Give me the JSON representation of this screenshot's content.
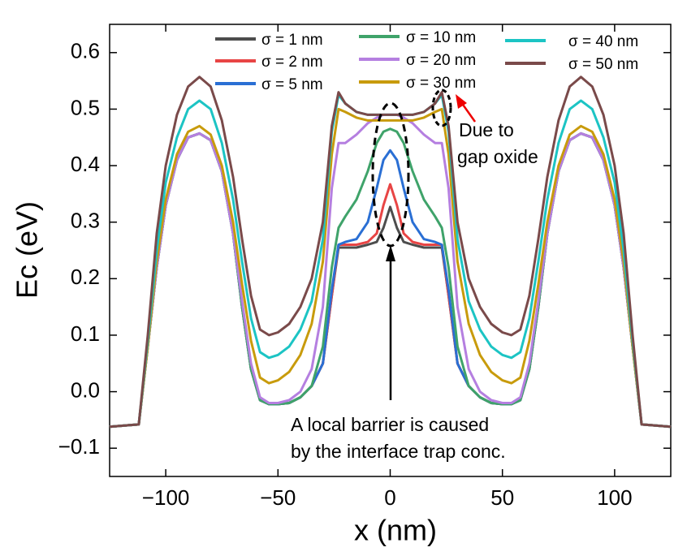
{
  "chart_data": {
    "type": "line",
    "xlabel": "x (nm)",
    "ylabel": "Ec (eV)",
    "xlim": [
      -125,
      125
    ],
    "ylim": [
      -0.15,
      0.65
    ],
    "xticks": [
      {
        "value": -100,
        "label": "−100"
      },
      {
        "value": -50,
        "label": "−50"
      },
      0,
      50,
      100
    ],
    "yticks": [
      {
        "value": -0.1,
        "label": "−0.1"
      },
      {
        "value": 0,
        "label": "0.0"
      },
      0.1,
      0.2,
      0.3,
      0.4,
      0.5,
      0.6
    ],
    "x": [
      -125,
      -112,
      -108,
      -104,
      -100,
      -95,
      -90,
      -85,
      -80,
      -75,
      -70,
      -66,
      -62,
      -58,
      -54,
      -50,
      -45,
      -40,
      -35,
      -30,
      -26,
      -23,
      -20,
      -15,
      -10,
      -6,
      -3,
      0,
      3,
      6,
      10,
      15,
      20,
      23,
      26,
      30,
      35,
      40,
      45,
      50,
      54,
      58,
      62,
      66,
      70,
      75,
      80,
      85,
      90,
      95,
      100,
      104,
      108,
      112,
      125
    ],
    "series": [
      {
        "name": "σ = 1 nm",
        "color": "#4d4d4d",
        "values": [
          -0.062,
          -0.058,
          0.08,
          0.22,
          0.33,
          0.41,
          0.45,
          0.457,
          0.445,
          0.39,
          0.28,
          0.15,
          0.04,
          -0.015,
          -0.022,
          -0.022,
          -0.02,
          -0.01,
          0.01,
          0.05,
          0.17,
          0.255,
          0.255,
          0.255,
          0.26,
          0.265,
          0.29,
          0.327,
          0.29,
          0.265,
          0.26,
          0.255,
          0.255,
          0.255,
          0.17,
          0.05,
          0.01,
          -0.01,
          -0.02,
          -0.022,
          -0.022,
          -0.015,
          0.04,
          0.15,
          0.28,
          0.39,
          0.445,
          0.457,
          0.45,
          0.41,
          0.33,
          0.22,
          0.08,
          -0.058,
          -0.062
        ]
      },
      {
        "name": "σ = 2 nm",
        "color": "#e84545",
        "values": [
          -0.062,
          -0.058,
          0.08,
          0.22,
          0.33,
          0.41,
          0.45,
          0.457,
          0.445,
          0.39,
          0.28,
          0.15,
          0.04,
          -0.015,
          -0.022,
          -0.022,
          -0.02,
          -0.01,
          0.01,
          0.05,
          0.17,
          0.26,
          0.26,
          0.26,
          0.265,
          0.28,
          0.33,
          0.367,
          0.33,
          0.28,
          0.265,
          0.26,
          0.26,
          0.26,
          0.17,
          0.05,
          0.01,
          -0.01,
          -0.02,
          -0.022,
          -0.022,
          -0.015,
          0.04,
          0.15,
          0.28,
          0.39,
          0.445,
          0.457,
          0.45,
          0.41,
          0.33,
          0.22,
          0.08,
          -0.058,
          -0.062
        ]
      },
      {
        "name": "σ = 5 nm",
        "color": "#2a6fd4",
        "values": [
          -0.062,
          -0.058,
          0.08,
          0.22,
          0.33,
          0.41,
          0.45,
          0.457,
          0.445,
          0.39,
          0.28,
          0.15,
          0.04,
          -0.015,
          -0.022,
          -0.022,
          -0.02,
          -0.01,
          0.01,
          0.05,
          0.18,
          0.26,
          0.265,
          0.27,
          0.3,
          0.36,
          0.41,
          0.427,
          0.41,
          0.36,
          0.3,
          0.27,
          0.265,
          0.26,
          0.18,
          0.05,
          0.01,
          -0.01,
          -0.02,
          -0.022,
          -0.022,
          -0.015,
          0.04,
          0.15,
          0.28,
          0.39,
          0.445,
          0.457,
          0.45,
          0.41,
          0.33,
          0.22,
          0.08,
          -0.058,
          -0.062
        ]
      },
      {
        "name": "σ = 10 nm",
        "color": "#3fa36a",
        "values": [
          -0.062,
          -0.058,
          0.08,
          0.22,
          0.33,
          0.41,
          0.45,
          0.457,
          0.445,
          0.39,
          0.28,
          0.15,
          0.04,
          -0.015,
          -0.022,
          -0.022,
          -0.02,
          -0.01,
          0.01,
          0.08,
          0.22,
          0.29,
          0.31,
          0.34,
          0.39,
          0.44,
          0.46,
          0.465,
          0.46,
          0.44,
          0.39,
          0.34,
          0.31,
          0.29,
          0.22,
          0.08,
          0.01,
          -0.01,
          -0.02,
          -0.022,
          -0.022,
          -0.015,
          0.04,
          0.15,
          0.28,
          0.39,
          0.445,
          0.457,
          0.45,
          0.41,
          0.33,
          0.22,
          0.08,
          -0.058,
          -0.062
        ]
      },
      {
        "name": "σ = 20 nm",
        "color": "#b57fe0",
        "values": [
          -0.062,
          -0.058,
          0.08,
          0.22,
          0.33,
          0.41,
          0.45,
          0.457,
          0.445,
          0.39,
          0.28,
          0.16,
          0.05,
          -0.01,
          -0.02,
          -0.02,
          -0.015,
          0,
          0.04,
          0.15,
          0.36,
          0.44,
          0.44,
          0.455,
          0.475,
          0.485,
          0.49,
          0.49,
          0.49,
          0.485,
          0.475,
          0.455,
          0.44,
          0.44,
          0.36,
          0.15,
          0.04,
          0,
          -0.015,
          -0.02,
          -0.02,
          -0.01,
          0.05,
          0.16,
          0.28,
          0.39,
          0.445,
          0.457,
          0.45,
          0.41,
          0.33,
          0.22,
          0.08,
          -0.058,
          -0.062
        ]
      },
      {
        "name": "σ = 30 nm",
        "color": "#c89b0c",
        "values": [
          -0.062,
          -0.058,
          0.08,
          0.23,
          0.34,
          0.42,
          0.46,
          0.47,
          0.455,
          0.4,
          0.3,
          0.19,
          0.09,
          0.025,
          0.015,
          0.02,
          0.035,
          0.065,
          0.12,
          0.23,
          0.42,
          0.5,
          0.495,
          0.485,
          0.48,
          0.48,
          0.48,
          0.48,
          0.48,
          0.48,
          0.48,
          0.485,
          0.495,
          0.5,
          0.42,
          0.23,
          0.12,
          0.065,
          0.035,
          0.02,
          0.015,
          0.025,
          0.09,
          0.19,
          0.3,
          0.4,
          0.455,
          0.47,
          0.46,
          0.42,
          0.34,
          0.23,
          0.08,
          -0.058,
          -0.062
        ]
      },
      {
        "name": "σ = 40 nm",
        "color": "#1cc4c4",
        "values": [
          -0.062,
          -0.058,
          0.09,
          0.25,
          0.37,
          0.45,
          0.5,
          0.515,
          0.5,
          0.44,
          0.34,
          0.23,
          0.13,
          0.07,
          0.06,
          0.065,
          0.08,
          0.11,
          0.16,
          0.27,
          0.46,
          0.525,
          0.51,
          0.495,
          0.49,
          0.49,
          0.49,
          0.49,
          0.49,
          0.49,
          0.49,
          0.495,
          0.51,
          0.525,
          0.46,
          0.27,
          0.16,
          0.11,
          0.08,
          0.065,
          0.06,
          0.07,
          0.13,
          0.23,
          0.34,
          0.44,
          0.5,
          0.515,
          0.5,
          0.45,
          0.37,
          0.25,
          0.09,
          -0.058,
          -0.062
        ]
      },
      {
        "name": "σ = 50 nm",
        "color": "#7a4a4a",
        "values": [
          -0.062,
          -0.058,
          0.1,
          0.28,
          0.4,
          0.49,
          0.54,
          0.557,
          0.54,
          0.48,
          0.38,
          0.27,
          0.17,
          0.11,
          0.1,
          0.105,
          0.12,
          0.15,
          0.2,
          0.3,
          0.47,
          0.53,
          0.51,
          0.495,
          0.49,
          0.49,
          0.49,
          0.49,
          0.49,
          0.49,
          0.49,
          0.495,
          0.51,
          0.53,
          0.47,
          0.3,
          0.2,
          0.15,
          0.12,
          0.105,
          0.1,
          0.11,
          0.17,
          0.27,
          0.38,
          0.48,
          0.54,
          0.557,
          0.54,
          0.49,
          0.4,
          0.28,
          0.1,
          -0.058,
          -0.062
        ]
      }
    ],
    "annotations": [
      {
        "lines": [
          "Due to",
          "gap oxide"
        ]
      },
      {
        "lines": [
          "A local barrier is caused",
          "by the interface trap conc."
        ]
      }
    ]
  }
}
